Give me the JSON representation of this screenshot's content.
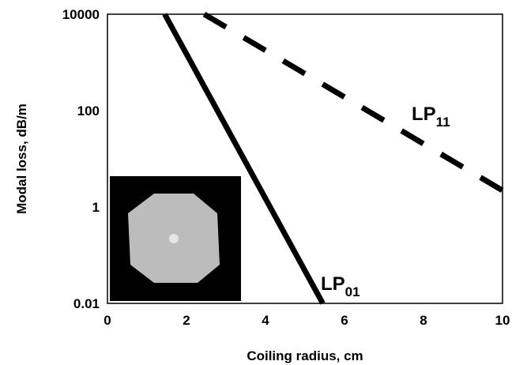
{
  "chart_data": {
    "type": "line",
    "xlabel": "Coiling radius, cm",
    "ylabel": "Modal loss, dB/m",
    "xlim": [
      0,
      10
    ],
    "ylim": [
      0.01,
      10000
    ],
    "yscale": "log",
    "grid": false,
    "x_ticks": [
      "0",
      "2",
      "4",
      "6",
      "8",
      "10"
    ],
    "y_ticks": [
      "0.01",
      "1",
      "100",
      "10000"
    ],
    "series": [
      {
        "name": "LP01",
        "label_main": "LP",
        "label_sub": "01",
        "style": "solid",
        "x": [
          1.45,
          5.45
        ],
        "y": [
          10000,
          0.01
        ]
      },
      {
        "name": "LP11",
        "label_main": "LP",
        "label_sub": "11",
        "style": "dashed",
        "x": [
          2.45,
          10.0
        ],
        "y": [
          10000,
          2.2
        ]
      }
    ],
    "inset": {
      "description": "fiber cross-section image",
      "background": "#000000",
      "core_color": "#bcbcbc",
      "center_color": "#e6e6e6"
    }
  }
}
